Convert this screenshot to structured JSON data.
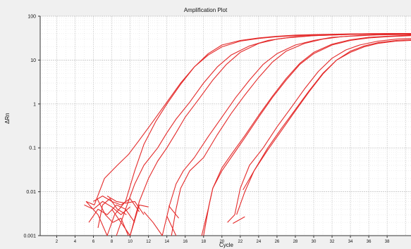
{
  "chart_data": {
    "type": "line",
    "title": "Amplification Plot",
    "xlabel": "Cycle",
    "ylabel": "ΔRn",
    "y_scale": "log",
    "xlim": [
      0.2,
      40.6
    ],
    "ylim": [
      0.001,
      100
    ],
    "grid": true,
    "legend": "none",
    "line_color": "#e42a2a",
    "x_ticks": [
      2,
      4,
      6,
      8,
      10,
      12,
      14,
      16,
      18,
      20,
      22,
      24,
      26,
      28,
      30,
      32,
      34,
      36,
      38
    ],
    "y_ticks": [
      {
        "value": 0.001,
        "label": "0.001"
      },
      {
        "value": 0.01,
        "label": "0.01"
      },
      {
        "value": 0.1,
        "label": "0.1"
      },
      {
        "value": 1,
        "label": "1"
      },
      {
        "value": 10,
        "label": "10"
      },
      {
        "value": 100,
        "label": "100"
      }
    ],
    "series": [
      {
        "points": [
          [
            5.2,
            0.006
          ],
          [
            6.1,
            0.005
          ],
          [
            7.2,
            0.02
          ],
          [
            8.6,
            0.04
          ],
          [
            9.8,
            0.07
          ],
          [
            11,
            0.15
          ],
          [
            12.5,
            0.4
          ],
          [
            14,
            1.1
          ],
          [
            15.5,
            3
          ],
          [
            17,
            7
          ],
          [
            18.5,
            14
          ],
          [
            20,
            22
          ],
          [
            22,
            28
          ],
          [
            24,
            32
          ],
          [
            26,
            35
          ],
          [
            28,
            37
          ],
          [
            30,
            38
          ],
          [
            34,
            39.5
          ],
          [
            38,
            40
          ],
          [
            40.6,
            40
          ]
        ]
      },
      {
        "points": [
          [
            5.2,
            0.006
          ],
          [
            6.5,
            0.003
          ],
          [
            7.5,
            0.001
          ],
          [
            8.3,
            0.003
          ],
          [
            9.5,
            0.006
          ],
          [
            10.5,
            0.03
          ],
          [
            11.5,
            0.12
          ],
          [
            12.8,
            0.4
          ],
          [
            14,
            1
          ],
          [
            15.5,
            2.8
          ],
          [
            17,
            7
          ],
          [
            18.5,
            13
          ],
          [
            20,
            20
          ],
          [
            22,
            27
          ],
          [
            24,
            31
          ],
          [
            26,
            34
          ],
          [
            28,
            36
          ],
          [
            32,
            38.5
          ],
          [
            36,
            40
          ],
          [
            40.6,
            40.5
          ]
        ]
      },
      {
        "points": [
          [
            10,
            0.001
          ],
          [
            11,
            0.006
          ],
          [
            12,
            0.02
          ],
          [
            13,
            0.05
          ],
          [
            14,
            0.1
          ],
          [
            15,
            0.22
          ],
          [
            16,
            0.5
          ],
          [
            17.5,
            1.3
          ],
          [
            19,
            3.5
          ],
          [
            20.5,
            8
          ],
          [
            22,
            15
          ],
          [
            24,
            24
          ],
          [
            26,
            30
          ],
          [
            28,
            34
          ],
          [
            30,
            36
          ],
          [
            34,
            38.5
          ],
          [
            38,
            40
          ],
          [
            40.6,
            40.5
          ]
        ]
      },
      {
        "points": [
          [
            8.5,
            0.001
          ],
          [
            9.5,
            0.004
          ],
          [
            10.5,
            0.015
          ],
          [
            11.5,
            0.04
          ],
          [
            13,
            0.1
          ],
          [
            14,
            0.22
          ],
          [
            15,
            0.45
          ],
          [
            16.5,
            1.1
          ],
          [
            18,
            3
          ],
          [
            19.5,
            7
          ],
          [
            21,
            13
          ],
          [
            23,
            21
          ],
          [
            25,
            28
          ],
          [
            27,
            32
          ],
          [
            30,
            36
          ],
          [
            34,
            38.5
          ],
          [
            38,
            39.5
          ],
          [
            40.6,
            40
          ]
        ]
      },
      {
        "points": [
          [
            14.5,
            0.001
          ],
          [
            15,
            0.004
          ],
          [
            15.5,
            0.012
          ],
          [
            16.5,
            0.03
          ],
          [
            18,
            0.06
          ],
          [
            19.5,
            0.2
          ],
          [
            21,
            0.6
          ],
          [
            22.5,
            1.6
          ],
          [
            24,
            4
          ],
          [
            25.5,
            9
          ],
          [
            27,
            16
          ],
          [
            29,
            24
          ],
          [
            31,
            30
          ],
          [
            33,
            34
          ],
          [
            35,
            36.5
          ],
          [
            38,
            38.5
          ],
          [
            40.6,
            39
          ]
        ]
      },
      {
        "points": [
          [
            13.5,
            0.001
          ],
          [
            14.3,
            0.005
          ],
          [
            15,
            0.015
          ],
          [
            15.8,
            0.03
          ],
          [
            17,
            0.06
          ],
          [
            18.5,
            0.18
          ],
          [
            20,
            0.5
          ],
          [
            21.5,
            1.4
          ],
          [
            23,
            3.5
          ],
          [
            24.5,
            8
          ],
          [
            26,
            14
          ],
          [
            28,
            22
          ],
          [
            30,
            28
          ],
          [
            32,
            33
          ],
          [
            34,
            35
          ],
          [
            37,
            37.5
          ],
          [
            40.6,
            38.5
          ]
        ]
      },
      {
        "points": [
          [
            18,
            0.001
          ],
          [
            18.6,
            0.005
          ],
          [
            19,
            0.012
          ],
          [
            20,
            0.03
          ],
          [
            21,
            0.06
          ],
          [
            22.5,
            0.17
          ],
          [
            24,
            0.5
          ],
          [
            25.5,
            1.4
          ],
          [
            27,
            3.5
          ],
          [
            28.5,
            8
          ],
          [
            30,
            14
          ],
          [
            32,
            22
          ],
          [
            34,
            28
          ],
          [
            36,
            32
          ],
          [
            38,
            34
          ],
          [
            40.6,
            36
          ]
        ]
      },
      {
        "points": [
          [
            17.8,
            0.001
          ],
          [
            18.5,
            0.004
          ],
          [
            19,
            0.012
          ],
          [
            20,
            0.035
          ],
          [
            21,
            0.07
          ],
          [
            22.5,
            0.19
          ],
          [
            24,
            0.55
          ],
          [
            25.5,
            1.5
          ],
          [
            27,
            3.8
          ],
          [
            28.5,
            8.5
          ],
          [
            30,
            15
          ],
          [
            32,
            23
          ],
          [
            34,
            29
          ],
          [
            36,
            33
          ],
          [
            38,
            35
          ],
          [
            40.6,
            37
          ]
        ]
      },
      {
        "points": [
          [
            20.6,
            0.002
          ],
          [
            21.4,
            0.003
          ],
          [
            22,
            0.012
          ],
          [
            23,
            0.04
          ],
          [
            24.5,
            0.1
          ],
          [
            26,
            0.3
          ],
          [
            27.5,
            0.8
          ],
          [
            29,
            2.2
          ],
          [
            30.5,
            5.5
          ],
          [
            32,
            11
          ],
          [
            33.5,
            17
          ],
          [
            35,
            22
          ],
          [
            37,
            27
          ],
          [
            39,
            30
          ],
          [
            40.6,
            31
          ]
        ]
      },
      {
        "points": [
          [
            21.6,
            0.003
          ],
          [
            22.5,
            0.01
          ],
          [
            23.5,
            0.03
          ],
          [
            25,
            0.09
          ],
          [
            26.5,
            0.25
          ],
          [
            28,
            0.7
          ],
          [
            29.5,
            1.9
          ],
          [
            31,
            4.8
          ],
          [
            32.5,
            10
          ],
          [
            34,
            16
          ],
          [
            35.5,
            21
          ],
          [
            37,
            25
          ],
          [
            39,
            28
          ],
          [
            40.6,
            29
          ]
        ]
      },
      {
        "points": [
          [
            22.3,
            0.011
          ],
          [
            23.5,
            0.03
          ],
          [
            25,
            0.1
          ],
          [
            26.5,
            0.28
          ],
          [
            28,
            0.75
          ],
          [
            29.5,
            2
          ],
          [
            31,
            5
          ],
          [
            32.5,
            10
          ],
          [
            34,
            15
          ],
          [
            35.5,
            20
          ],
          [
            37,
            24
          ],
          [
            39,
            27
          ],
          [
            40.6,
            28
          ]
        ]
      },
      {
        "points": [
          [
            5,
            0.005
          ],
          [
            6,
            0.004
          ],
          [
            7,
            0.006
          ],
          [
            8,
            0.0045
          ],
          [
            9,
            0.003
          ],
          [
            10,
            0.0045
          ]
        ]
      },
      {
        "points": [
          [
            5.5,
            0.002
          ],
          [
            6.5,
            0.004
          ],
          [
            7.5,
            0.003
          ],
          [
            8.5,
            0.005
          ],
          [
            9.5,
            0.004
          ],
          [
            10.5,
            0.002
          ]
        ]
      },
      {
        "points": [
          [
            6,
            0.006
          ],
          [
            7,
            0.008
          ],
          [
            8,
            0.006
          ],
          [
            9,
            0.005
          ],
          [
            10,
            0.007
          ],
          [
            11,
            0.0035
          ]
        ]
      },
      {
        "points": [
          [
            6.5,
            0.0015
          ],
          [
            7,
            0.005
          ],
          [
            7.8,
            0.007
          ],
          [
            8.6,
            0.004
          ],
          [
            9.6,
            0.003
          ]
        ]
      },
      {
        "points": [
          [
            7.5,
            0.008
          ],
          [
            8.5,
            0.006
          ],
          [
            9.5,
            0.0055
          ],
          [
            10.5,
            0.006
          ],
          [
            11.5,
            0.003
          ]
        ]
      },
      {
        "points": [
          [
            8,
            0.004
          ],
          [
            9,
            0.002
          ],
          [
            10,
            0.001
          ],
          [
            11,
            0.005
          ],
          [
            12,
            0.0045
          ]
        ]
      },
      {
        "points": [
          [
            6.4,
            0.007
          ],
          [
            7.3,
            0.003
          ],
          [
            8.1,
            0.002
          ],
          [
            9,
            0.0025
          ],
          [
            9.8,
            0.001
          ]
        ]
      },
      {
        "points": [
          [
            11.5,
            0.0035
          ],
          [
            12.5,
            0.002
          ],
          [
            13.5,
            0.001
          ]
        ]
      },
      {
        "points": [
          [
            14.2,
            0.0048
          ],
          [
            15.3,
            0.0025
          ]
        ]
      },
      {
        "points": [
          [
            14,
            0.0028
          ],
          [
            15,
            0.001
          ]
        ]
      },
      {
        "points": [
          [
            21.2,
            0.0019
          ],
          [
            22.5,
            0.0027
          ]
        ]
      }
    ]
  }
}
